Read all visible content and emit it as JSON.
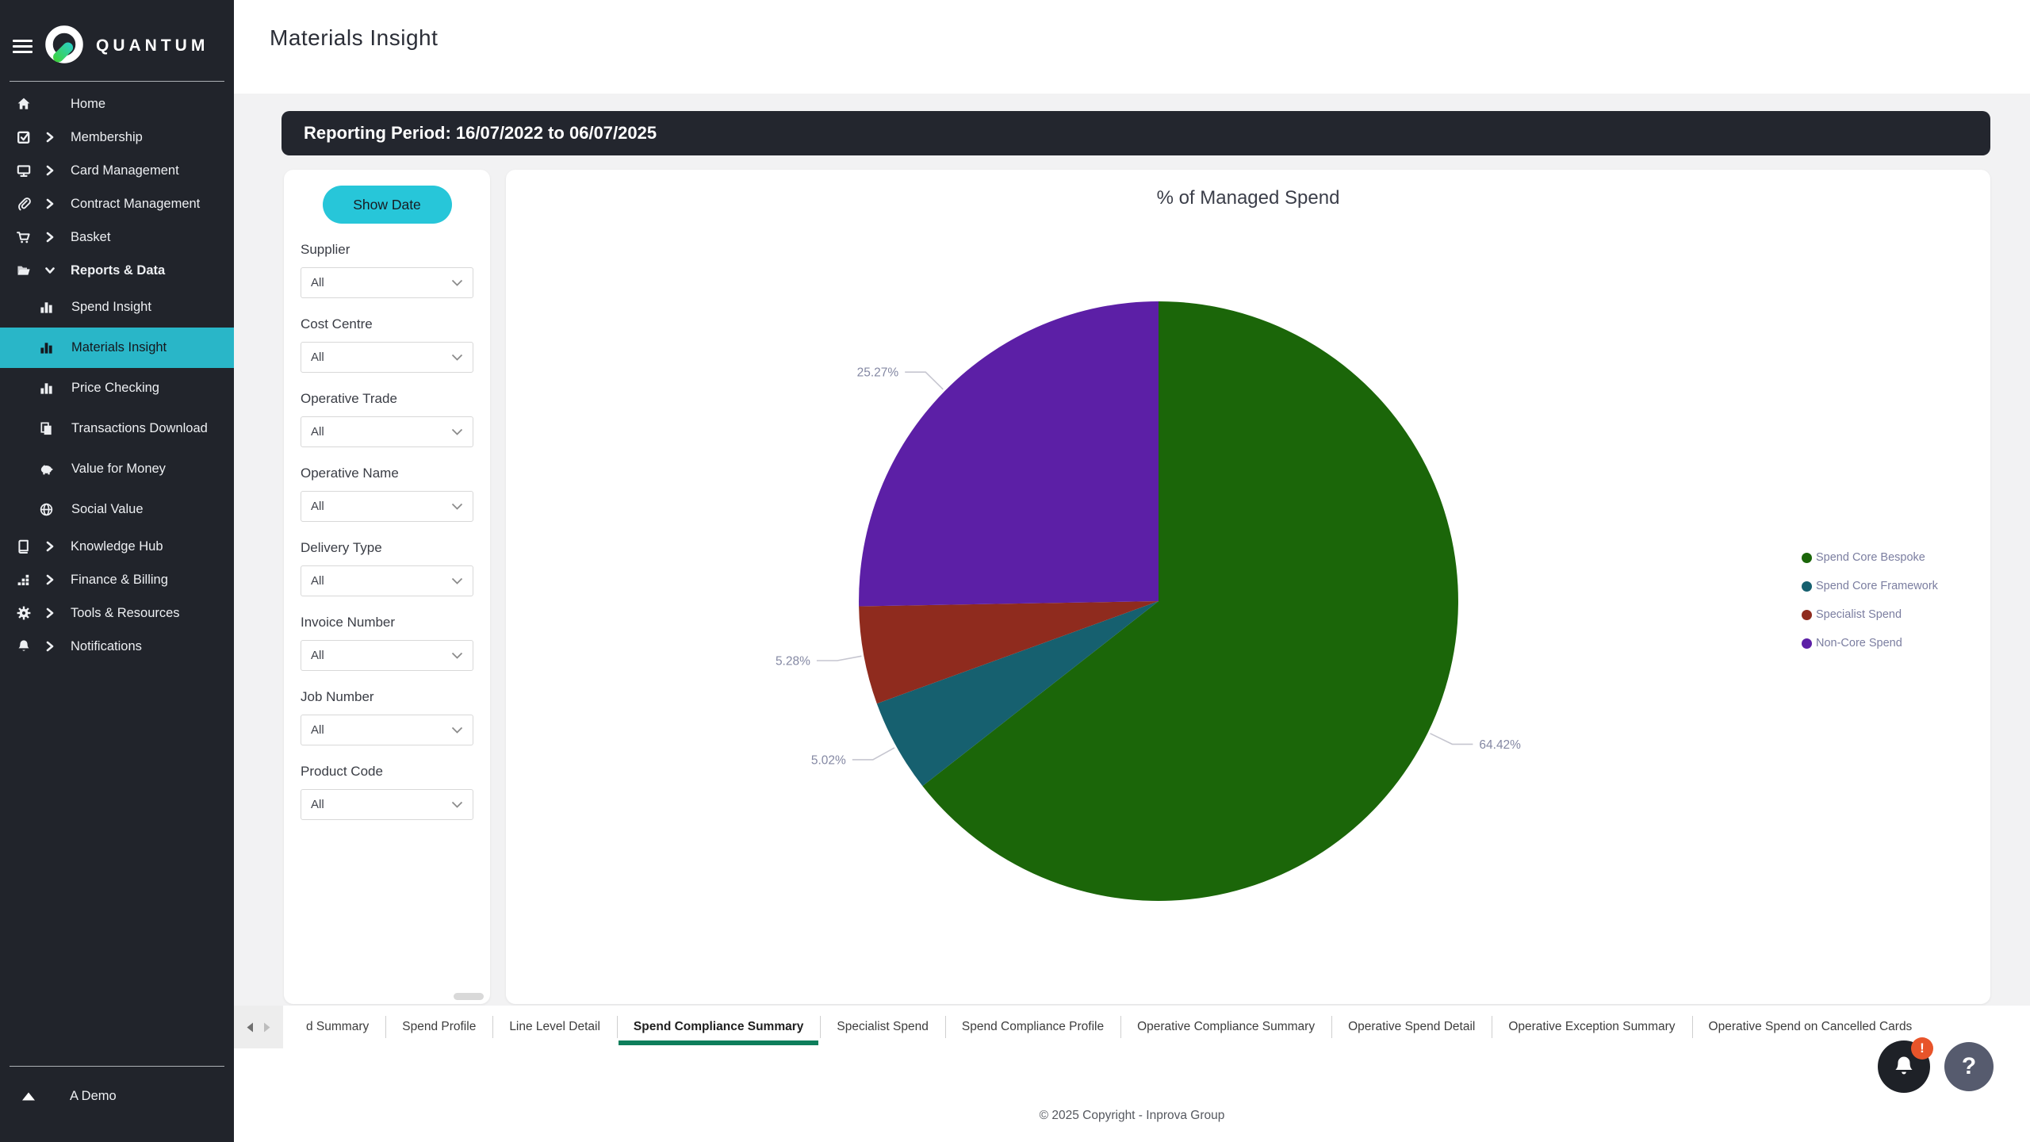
{
  "sidebar": {
    "brand": "QUANTUM",
    "items": [
      {
        "label": "Home"
      },
      {
        "label": "Membership"
      },
      {
        "label": "Card Management"
      },
      {
        "label": "Contract Management"
      },
      {
        "label": "Basket"
      },
      {
        "label": "Reports & Data",
        "expanded": true,
        "children": [
          {
            "label": "Spend Insight"
          },
          {
            "label": "Materials Insight",
            "active": true
          },
          {
            "label": "Price Checking"
          },
          {
            "label": "Transactions Download"
          },
          {
            "label": "Value for Money"
          },
          {
            "label": "Social Value"
          }
        ]
      },
      {
        "label": "Knowledge Hub"
      },
      {
        "label": "Finance & Billing"
      },
      {
        "label": "Tools & Resources"
      },
      {
        "label": "Notifications"
      }
    ],
    "account_label": "A Demo"
  },
  "header": {
    "title": "Materials Insight"
  },
  "report": {
    "period_banner": "Reporting Period: 16/07/2022 to 06/07/2025",
    "show_date_label": "Show Date",
    "filters": [
      {
        "label": "Supplier",
        "value": "All"
      },
      {
        "label": "Cost Centre",
        "value": "All"
      },
      {
        "label": "Operative Trade",
        "value": "All"
      },
      {
        "label": "Operative Name",
        "value": "All"
      },
      {
        "label": "Delivery Type",
        "value": "All"
      },
      {
        "label": "Invoice Number",
        "value": "All"
      },
      {
        "label": "Job Number",
        "value": "All"
      },
      {
        "label": "Product Code",
        "value": "All"
      }
    ]
  },
  "chart_data": {
    "type": "pie",
    "title": "% of Managed Spend",
    "legend_position": "right",
    "start_angle_deg": 0,
    "direction": "clockwise",
    "series": [
      {
        "name": "Spend Core Bespoke",
        "value": 64.42,
        "label": "64.42%",
        "color": "#1b6609"
      },
      {
        "name": "Spend Core Framework",
        "value": 5.02,
        "label": "5.02%",
        "color": "#16606f"
      },
      {
        "name": "Specialist Spend",
        "value": 5.28,
        "label": "5.28%",
        "color": "#8f2b1e"
      },
      {
        "name": "Non-Core Spend",
        "value": 25.27,
        "label": "25.27%",
        "color": "#5c1fa6"
      }
    ]
  },
  "tabs": [
    {
      "label": "d Summary"
    },
    {
      "label": "Spend Profile"
    },
    {
      "label": "Line Level Detail"
    },
    {
      "label": "Spend Compliance Summary",
      "active": true
    },
    {
      "label": "Specialist Spend"
    },
    {
      "label": "Spend Compliance Profile"
    },
    {
      "label": "Operative Compliance Summary"
    },
    {
      "label": "Operative Spend Detail"
    },
    {
      "label": "Operative Exception Summary"
    },
    {
      "label": "Operative Spend on Cancelled Cards"
    }
  ],
  "footer": {
    "copyright": "© 2025 Copyright - Inprova Group"
  },
  "floating": {
    "notifications_badge": "!",
    "help": "?"
  }
}
